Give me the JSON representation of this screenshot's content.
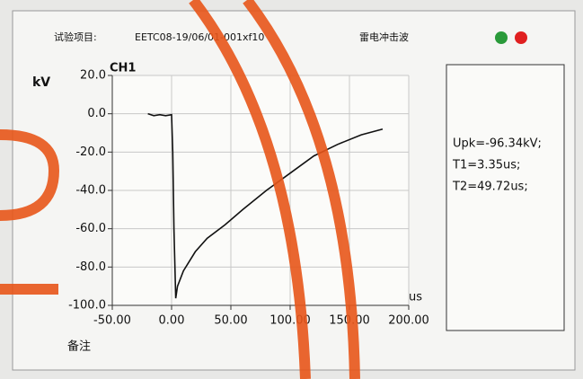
{
  "header": {
    "item_label": "试验项目:",
    "item_value": "EETC08-19/06/01-001xf10",
    "wave_type": "雷电冲击波"
  },
  "chart_data": {
    "type": "line",
    "channel": "CH1",
    "y_label": "kV",
    "x_label": "us",
    "xlim": [
      -50,
      200
    ],
    "ylim": [
      -100,
      20
    ],
    "xticks": [
      {
        "value": -50,
        "label": "-50.00"
      },
      {
        "value": 0,
        "label": "0.00"
      },
      {
        "value": 50,
        "label": "50.00"
      },
      {
        "value": 100,
        "label": "100.00"
      },
      {
        "value": 150,
        "label": "150.00"
      },
      {
        "value": 200,
        "label": "200.00"
      }
    ],
    "yticks": [
      {
        "value": 20,
        "label": "20.0"
      },
      {
        "value": 0,
        "label": "0.0"
      },
      {
        "value": -20,
        "label": "-20.0"
      },
      {
        "value": -40,
        "label": "-40.0"
      },
      {
        "value": -60,
        "label": "-60.0"
      },
      {
        "value": -80,
        "label": "-80.0"
      },
      {
        "value": -100,
        "label": "-100.0"
      }
    ],
    "grid": true,
    "series": [
      {
        "color": "#111111",
        "x": [
          -20,
          -15,
          -10,
          -5,
          0,
          1,
          2,
          3.5,
          5,
          10,
          20,
          30,
          45,
          60,
          80,
          100,
          120,
          140,
          160,
          178
        ],
        "values": [
          0,
          -1,
          -0.5,
          -1,
          -0.5,
          -20,
          -60,
          -96.3,
          -90,
          -82,
          -72,
          -65,
          -58,
          -50,
          -40,
          -31,
          -22,
          -16,
          -11,
          -8
        ]
      }
    ]
  },
  "results": [
    "Upk=-96.34kV;",
    "T1=3.35us;",
    "T2=49.72us;"
  ],
  "remark": "备注"
}
